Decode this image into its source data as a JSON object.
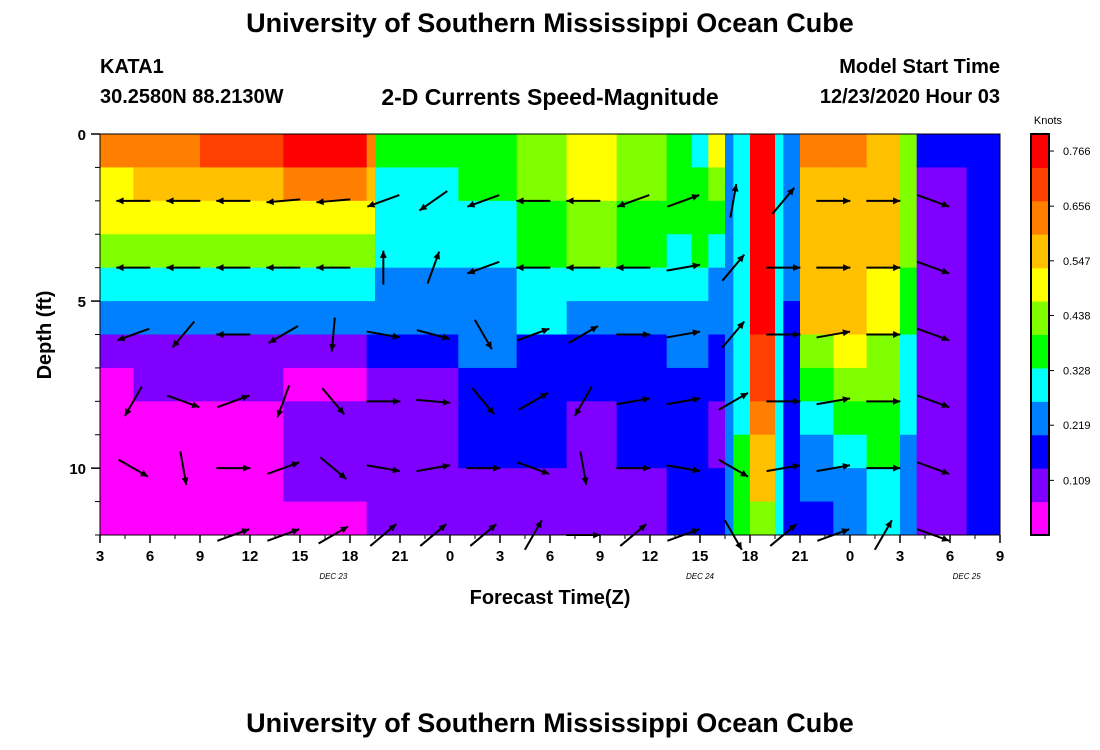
{
  "header": {
    "title_top": "University of Southern Mississippi Ocean Cube",
    "title_bottom": "University of Southern Mississippi Ocean Cube",
    "station_id": "KATA1",
    "station_coords": "30.2580N 88.2130W",
    "model_label": "Model Start Time",
    "model_time": "12/23/2020 Hour 03"
  },
  "chart_data": {
    "type": "heatmap",
    "title": "2-D Currents Speed-Magnitude",
    "xlabel": "Forecast Time(Z)",
    "ylabel": "Depth (ft)",
    "x_ticks": [
      "3",
      "6",
      "9",
      "12",
      "15",
      "18",
      "21",
      "0",
      "3",
      "6",
      "9",
      "12",
      "15",
      "18",
      "21",
      "0",
      "3",
      "6",
      "9"
    ],
    "x_date_labels": [
      {
        "label": "DEC 23",
        "at_hour": 14
      },
      {
        "label": "DEC 24",
        "at_hour": 36
      },
      {
        "label": "DEC 25",
        "at_hour": 52
      }
    ],
    "x_range_hours_from_dec23_03z": [
      0,
      54
    ],
    "y_ticks": [
      0,
      5,
      10
    ],
    "ylim": [
      0,
      12
    ],
    "y_reversed": true,
    "colorbar": {
      "unit": "Knots",
      "ticks": [
        0.109,
        0.219,
        0.328,
        0.438,
        0.547,
        0.656,
        0.766
      ],
      "range": [
        0.0,
        0.8
      ],
      "colors": [
        "#ff00ff",
        "#7f00ff",
        "#0000ff",
        "#0080ff",
        "#00ffff",
        "#00ff00",
        "#80ff00",
        "#ffff00",
        "#ffc000",
        "#ff8000",
        "#ff4000",
        "#ff0000"
      ]
    },
    "speed_segments": [
      {
        "t0": 0,
        "t1": 2,
        "profile": [
          0.62,
          0.52,
          0.47,
          0.42,
          0.3,
          0.23,
          0.11,
          0.06,
          0.04,
          0.03,
          0.03,
          0.02
        ]
      },
      {
        "t0": 2,
        "t1": 6,
        "profile": [
          0.64,
          0.56,
          0.51,
          0.44,
          0.29,
          0.25,
          0.12,
          0.07,
          0.05,
          0.04,
          0.03,
          0.03
        ]
      },
      {
        "t0": 6,
        "t1": 11,
        "profile": [
          0.68,
          0.58,
          0.52,
          0.44,
          0.3,
          0.25,
          0.12,
          0.07,
          0.06,
          0.05,
          0.05,
          0.05
        ]
      },
      {
        "t0": 11,
        "t1": 16,
        "profile": [
          0.74,
          0.62,
          0.52,
          0.45,
          0.3,
          0.26,
          0.13,
          0.06,
          0.07,
          0.07,
          0.07,
          0.06
        ]
      },
      {
        "t0": 16,
        "t1": 16.5,
        "profile": [
          0.66,
          0.58,
          0.5,
          0.44,
          0.31,
          0.26,
          0.14,
          0.09,
          0.08,
          0.07,
          0.07,
          0.08
        ]
      },
      {
        "t0": 16.5,
        "t1": 21.5,
        "profile": [
          0.34,
          0.32,
          0.3,
          0.28,
          0.26,
          0.22,
          0.14,
          0.12,
          0.12,
          0.12,
          0.1,
          0.1
        ]
      },
      {
        "t0": 21.5,
        "t1": 25,
        "profile": [
          0.38,
          0.34,
          0.3,
          0.3,
          0.26,
          0.24,
          0.2,
          0.18,
          0.17,
          0.14,
          0.12,
          0.11
        ]
      },
      {
        "t0": 25,
        "t1": 28,
        "profile": [
          0.42,
          0.4,
          0.36,
          0.34,
          0.3,
          0.28,
          0.18,
          0.18,
          0.16,
          0.16,
          0.13,
          0.11
        ]
      },
      {
        "t0": 28,
        "t1": 31,
        "profile": [
          0.52,
          0.48,
          0.46,
          0.4,
          0.3,
          0.26,
          0.16,
          0.14,
          0.12,
          0.11,
          0.09,
          0.09
        ]
      },
      {
        "t0": 31,
        "t1": 34,
        "profile": [
          0.44,
          0.42,
          0.38,
          0.34,
          0.28,
          0.26,
          0.16,
          0.16,
          0.14,
          0.14,
          0.12,
          0.12
        ]
      },
      {
        "t0": 34,
        "t1": 35.5,
        "profile": [
          0.34,
          0.34,
          0.34,
          0.32,
          0.28,
          0.24,
          0.2,
          0.18,
          0.16,
          0.16,
          0.15,
          0.16
        ]
      },
      {
        "t0": 35.5,
        "t1": 36.5,
        "profile": [
          0.3,
          0.34,
          0.36,
          0.34,
          0.3,
          0.25,
          0.2,
          0.18,
          0.18,
          0.16,
          0.14,
          0.14
        ]
      },
      {
        "t0": 36.5,
        "t1": 37.5,
        "profile": [
          0.5,
          0.4,
          0.34,
          0.3,
          0.26,
          0.24,
          0.16,
          0.14,
          0.12,
          0.12,
          0.14,
          0.14
        ]
      },
      {
        "t0": 37.5,
        "t1": 38,
        "profile": [
          0.2,
          0.2,
          0.2,
          0.2,
          0.2,
          0.2,
          0.2,
          0.2,
          0.2,
          0.2,
          0.2,
          0.2
        ]
      },
      {
        "t0": 38,
        "t1": 39,
        "profile": [
          0.3,
          0.3,
          0.3,
          0.3,
          0.3,
          0.3,
          0.3,
          0.3,
          0.32,
          0.34,
          0.36,
          0.36
        ]
      },
      {
        "t0": 39,
        "t1": 40.5,
        "profile": [
          0.76,
          0.76,
          0.76,
          0.76,
          0.76,
          0.74,
          0.72,
          0.7,
          0.66,
          0.6,
          0.54,
          0.4
        ]
      },
      {
        "t0": 40.5,
        "t1": 41,
        "profile": [
          0.3,
          0.3,
          0.3,
          0.3,
          0.3,
          0.3,
          0.3,
          0.3,
          0.3,
          0.3,
          0.3,
          0.3
        ]
      },
      {
        "t0": 41,
        "t1": 42,
        "profile": [
          0.2,
          0.2,
          0.2,
          0.2,
          0.2,
          0.18,
          0.18,
          0.18,
          0.18,
          0.16,
          0.16,
          0.16
        ]
      },
      {
        "t0": 42,
        "t1": 44,
        "profile": [
          0.62,
          0.6,
          0.6,
          0.6,
          0.58,
          0.56,
          0.46,
          0.34,
          0.28,
          0.24,
          0.2,
          0.18
        ]
      },
      {
        "t0": 44,
        "t1": 46,
        "profile": [
          0.62,
          0.6,
          0.6,
          0.6,
          0.58,
          0.56,
          0.5,
          0.4,
          0.34,
          0.28,
          0.26,
          0.22
        ]
      },
      {
        "t0": 46,
        "t1": 48,
        "profile": [
          0.56,
          0.54,
          0.54,
          0.54,
          0.52,
          0.5,
          0.46,
          0.4,
          0.36,
          0.34,
          0.32,
          0.3
        ]
      },
      {
        "t0": 48,
        "t1": 49,
        "profile": [
          0.4,
          0.4,
          0.4,
          0.4,
          0.38,
          0.36,
          0.32,
          0.3,
          0.28,
          0.26,
          0.24,
          0.22
        ]
      },
      {
        "t0": 49,
        "t1": 52,
        "profile": [
          0.14,
          0.12,
          0.11,
          0.1,
          0.1,
          0.1,
          0.1,
          0.1,
          0.1,
          0.1,
          0.1,
          0.1
        ]
      },
      {
        "t0": 52,
        "t1": 54,
        "profile": [
          0.14,
          0.15,
          0.16,
          0.18,
          0.18,
          0.18,
          0.16,
          0.16,
          0.15,
          0.15,
          0.14,
          0.14
        ]
      }
    ],
    "vectors": [
      {
        "depth": 2,
        "t": 2,
        "dir": 180
      },
      {
        "depth": 2,
        "t": 5,
        "dir": 180
      },
      {
        "depth": 2,
        "t": 8,
        "dir": 180
      },
      {
        "depth": 2,
        "t": 11,
        "dir": 185
      },
      {
        "depth": 2,
        "t": 14,
        "dir": 185
      },
      {
        "depth": 2,
        "t": 17,
        "dir": 200
      },
      {
        "depth": 2,
        "t": 20,
        "dir": 215
      },
      {
        "depth": 2,
        "t": 23,
        "dir": 200
      },
      {
        "depth": 2,
        "t": 26,
        "dir": 180
      },
      {
        "depth": 2,
        "t": 29,
        "dir": 180
      },
      {
        "depth": 2,
        "t": 32,
        "dir": 200
      },
      {
        "depth": 2,
        "t": 35,
        "dir": 20
      },
      {
        "depth": 2,
        "t": 38,
        "dir": 80
      },
      {
        "depth": 2,
        "t": 41,
        "dir": 50
      },
      {
        "depth": 2,
        "t": 44,
        "dir": 0
      },
      {
        "depth": 2,
        "t": 47,
        "dir": 0
      },
      {
        "depth": 2,
        "t": 50,
        "dir": 340
      },
      {
        "depth": 4,
        "t": 2,
        "dir": 180
      },
      {
        "depth": 4,
        "t": 5,
        "dir": 180
      },
      {
        "depth": 4,
        "t": 8,
        "dir": 180
      },
      {
        "depth": 4,
        "t": 11,
        "dir": 180
      },
      {
        "depth": 4,
        "t": 14,
        "dir": 180
      },
      {
        "depth": 4,
        "t": 17,
        "dir": 90
      },
      {
        "depth": 4,
        "t": 20,
        "dir": 70
      },
      {
        "depth": 4,
        "t": 23,
        "dir": 200
      },
      {
        "depth": 4,
        "t": 26,
        "dir": 180
      },
      {
        "depth": 4,
        "t": 29,
        "dir": 180
      },
      {
        "depth": 4,
        "t": 32,
        "dir": 180
      },
      {
        "depth": 4,
        "t": 35,
        "dir": 10
      },
      {
        "depth": 4,
        "t": 38,
        "dir": 50
      },
      {
        "depth": 4,
        "t": 41,
        "dir": 0
      },
      {
        "depth": 4,
        "t": 44,
        "dir": 0
      },
      {
        "depth": 4,
        "t": 47,
        "dir": 0
      },
      {
        "depth": 4,
        "t": 50,
        "dir": 340
      },
      {
        "depth": 6,
        "t": 2,
        "dir": 200
      },
      {
        "depth": 6,
        "t": 5,
        "dir": 230
      },
      {
        "depth": 6,
        "t": 8,
        "dir": 180
      },
      {
        "depth": 6,
        "t": 11,
        "dir": 210
      },
      {
        "depth": 6,
        "t": 14,
        "dir": 265
      },
      {
        "depth": 6,
        "t": 17,
        "dir": 350
      },
      {
        "depth": 6,
        "t": 20,
        "dir": 345
      },
      {
        "depth": 6,
        "t": 23,
        "dir": 300
      },
      {
        "depth": 6,
        "t": 26,
        "dir": 20
      },
      {
        "depth": 6,
        "t": 29,
        "dir": 30
      },
      {
        "depth": 6,
        "t": 32,
        "dir": 0
      },
      {
        "depth": 6,
        "t": 35,
        "dir": 10
      },
      {
        "depth": 6,
        "t": 38,
        "dir": 50
      },
      {
        "depth": 6,
        "t": 41,
        "dir": 0
      },
      {
        "depth": 6,
        "t": 44,
        "dir": 10
      },
      {
        "depth": 6,
        "t": 47,
        "dir": 0
      },
      {
        "depth": 6,
        "t": 50,
        "dir": 340
      },
      {
        "depth": 8,
        "t": 2,
        "dir": 240
      },
      {
        "depth": 8,
        "t": 5,
        "dir": 340
      },
      {
        "depth": 8,
        "t": 8,
        "dir": 20
      },
      {
        "depth": 8,
        "t": 11,
        "dir": 250
      },
      {
        "depth": 8,
        "t": 14,
        "dir": 310
      },
      {
        "depth": 8,
        "t": 17,
        "dir": 0
      },
      {
        "depth": 8,
        "t": 20,
        "dir": 355
      },
      {
        "depth": 8,
        "t": 23,
        "dir": 310
      },
      {
        "depth": 8,
        "t": 26,
        "dir": 30
      },
      {
        "depth": 8,
        "t": 29,
        "dir": 240
      },
      {
        "depth": 8,
        "t": 32,
        "dir": 10
      },
      {
        "depth": 8,
        "t": 35,
        "dir": 10
      },
      {
        "depth": 8,
        "t": 38,
        "dir": 30
      },
      {
        "depth": 8,
        "t": 41,
        "dir": 0
      },
      {
        "depth": 8,
        "t": 44,
        "dir": 10
      },
      {
        "depth": 8,
        "t": 47,
        "dir": 0
      },
      {
        "depth": 8,
        "t": 50,
        "dir": 340
      },
      {
        "depth": 10,
        "t": 2,
        "dir": 330
      },
      {
        "depth": 10,
        "t": 5,
        "dir": 280
      },
      {
        "depth": 10,
        "t": 8,
        "dir": 0
      },
      {
        "depth": 10,
        "t": 11,
        "dir": 20
      },
      {
        "depth": 10,
        "t": 14,
        "dir": 320
      },
      {
        "depth": 10,
        "t": 17,
        "dir": 350
      },
      {
        "depth": 10,
        "t": 20,
        "dir": 10
      },
      {
        "depth": 10,
        "t": 23,
        "dir": 0
      },
      {
        "depth": 10,
        "t": 26,
        "dir": 340
      },
      {
        "depth": 10,
        "t": 29,
        "dir": 280
      },
      {
        "depth": 10,
        "t": 32,
        "dir": 0
      },
      {
        "depth": 10,
        "t": 35,
        "dir": 350
      },
      {
        "depth": 10,
        "t": 38,
        "dir": 330
      },
      {
        "depth": 10,
        "t": 41,
        "dir": 10
      },
      {
        "depth": 10,
        "t": 44,
        "dir": 10
      },
      {
        "depth": 10,
        "t": 47,
        "dir": 0
      },
      {
        "depth": 10,
        "t": 50,
        "dir": 340
      },
      {
        "depth": 12,
        "t": 8,
        "dir": 20
      },
      {
        "depth": 12,
        "t": 11,
        "dir": 20
      },
      {
        "depth": 12,
        "t": 14,
        "dir": 30
      },
      {
        "depth": 12,
        "t": 17,
        "dir": 40
      },
      {
        "depth": 12,
        "t": 20,
        "dir": 40
      },
      {
        "depth": 12,
        "t": 23,
        "dir": 40
      },
      {
        "depth": 12,
        "t": 26,
        "dir": 60
      },
      {
        "depth": 12,
        "t": 29,
        "dir": 0
      },
      {
        "depth": 12,
        "t": 32,
        "dir": 40
      },
      {
        "depth": 12,
        "t": 35,
        "dir": 20
      },
      {
        "depth": 12,
        "t": 38,
        "dir": 300
      },
      {
        "depth": 12,
        "t": 41,
        "dir": 40
      },
      {
        "depth": 12,
        "t": 44,
        "dir": 20
      },
      {
        "depth": 12,
        "t": 47,
        "dir": 60
      },
      {
        "depth": 12,
        "t": 50,
        "dir": 340
      }
    ]
  }
}
